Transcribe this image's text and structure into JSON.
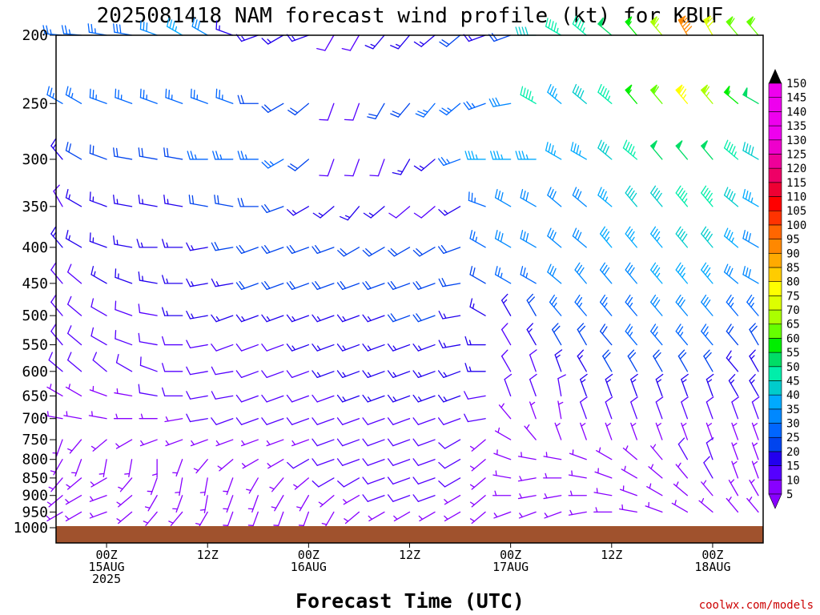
{
  "title": "2025081418 NAM forecast wind profile (kt) for KBUF",
  "credit": "coolwx.com/models",
  "colors": {
    "ground": "#a0522d",
    "frame": "#000000",
    "cbar_stops": [
      "#8800ff",
      "#5500ff",
      "#2200ee",
      "#0044ee",
      "#0066ff",
      "#0088ff",
      "#00aaff",
      "#00cccc",
      "#00eeaa",
      "#00dd66",
      "#00ee00",
      "#66ff00",
      "#aaff00",
      "#ddff00",
      "#ffff00",
      "#ffcc00",
      "#ffaa00",
      "#ff8800",
      "#ff6600",
      "#ff3300",
      "#ff0000",
      "#ee0033",
      "#ee0066",
      "#ee0099",
      "#ee00cc",
      "#ee00ee"
    ]
  },
  "chart_data": {
    "type": "wind_barb_profile",
    "xlabel": "Forecast Time (UTC)",
    "ylabel": "",
    "unit": "kt",
    "ylim": [
      1000,
      200
    ],
    "y_scale": "log-pressure",
    "y_ticks": [
      200,
      250,
      300,
      350,
      400,
      450,
      500,
      550,
      600,
      650,
      700,
      750,
      800,
      850,
      900,
      950,
      1000
    ],
    "x_ticks": [
      {
        "line1": "00Z",
        "line2": "15AUG",
        "line3": "2025",
        "hour": 6
      },
      {
        "line1": "12Z",
        "line2": "",
        "line3": "",
        "hour": 18
      },
      {
        "line1": "00Z",
        "line2": "16AUG",
        "line3": "",
        "hour": 30
      },
      {
        "line1": "12Z",
        "line2": "",
        "line3": "",
        "hour": 42
      },
      {
        "line1": "00Z",
        "line2": "17AUG",
        "line3": "",
        "hour": 54
      },
      {
        "line1": "12Z",
        "line2": "",
        "line3": "",
        "hour": 66
      },
      {
        "line1": "00Z",
        "line2": "18AUG",
        "line3": "",
        "hour": 78
      }
    ],
    "xlim_hours": [
      0,
      84
    ],
    "colorbar": {
      "min": 5,
      "max": 150,
      "step": 5,
      "labels": [
        150,
        145,
        140,
        135,
        130,
        125,
        120,
        115,
        110,
        105,
        100,
        95,
        90,
        85,
        80,
        75,
        70,
        65,
        60,
        55,
        50,
        45,
        40,
        35,
        30,
        25,
        20,
        15,
        10,
        5
      ]
    },
    "barb_hours": [
      0,
      3,
      6,
      9,
      12,
      15,
      18,
      21,
      24,
      27,
      30,
      33,
      36,
      39,
      42,
      45,
      48,
      51,
      54,
      57,
      60,
      63,
      66,
      69,
      72,
      75,
      78,
      81,
      84
    ],
    "levels": [
      {
        "p": 200,
        "dir": [
          275,
          275,
          280,
          280,
          290,
          300,
          300,
          290,
          250,
          240,
          250,
          210,
          210,
          220,
          220,
          230,
          230,
          250,
          250,
          270,
          300,
          310,
          310,
          320,
          320,
          330,
          330,
          320,
          320
        ],
        "spd": [
          25,
          25,
          25,
          28,
          30,
          35,
          30,
          15,
          15,
          15,
          15,
          10,
          10,
          15,
          15,
          15,
          20,
          15,
          20,
          40,
          45,
          45,
          50,
          55,
          65,
          90,
          70,
          60,
          60
        ]
      },
      {
        "p": 250,
        "dir": [
          300,
          300,
          290,
          290,
          290,
          290,
          290,
          290,
          270,
          240,
          230,
          200,
          200,
          210,
          220,
          220,
          230,
          250,
          260,
          300,
          310,
          310,
          310,
          320,
          320,
          320,
          320,
          310,
          300
        ],
        "spd": [
          25,
          25,
          25,
          25,
          25,
          25,
          25,
          25,
          20,
          20,
          20,
          10,
          10,
          20,
          20,
          25,
          25,
          25,
          30,
          45,
          35,
          40,
          45,
          55,
          60,
          75,
          65,
          55,
          50
        ]
      },
      {
        "p": 300,
        "dir": [
          320,
          300,
          290,
          280,
          280,
          280,
          270,
          270,
          270,
          240,
          230,
          200,
          200,
          200,
          210,
          230,
          250,
          270,
          270,
          270,
          300,
          300,
          310,
          310,
          320,
          320,
          320,
          310,
          300
        ],
        "spd": [
          15,
          20,
          20,
          20,
          20,
          20,
          25,
          25,
          25,
          25,
          20,
          10,
          10,
          10,
          15,
          15,
          25,
          35,
          35,
          35,
          35,
          35,
          40,
          45,
          50,
          50,
          50,
          45,
          40
        ]
      },
      {
        "p": 350,
        "dir": [
          330,
          300,
          290,
          280,
          280,
          280,
          280,
          280,
          270,
          250,
          240,
          230,
          220,
          230,
          230,
          230,
          240,
          290,
          300,
          300,
          310,
          310,
          310,
          320,
          320,
          320,
          320,
          310,
          300
        ],
        "spd": [
          10,
          15,
          15,
          15,
          15,
          15,
          20,
          20,
          20,
          20,
          15,
          15,
          15,
          15,
          10,
          10,
          15,
          25,
          30,
          30,
          30,
          30,
          35,
          40,
          40,
          45,
          45,
          40,
          35
        ]
      },
      {
        "p": 400,
        "dir": [
          320,
          300,
          290,
          280,
          270,
          270,
          260,
          260,
          250,
          250,
          250,
          250,
          240,
          240,
          240,
          240,
          250,
          300,
          300,
          300,
          310,
          310,
          320,
          320,
          320,
          320,
          320,
          310,
          300
        ],
        "spd": [
          15,
          15,
          15,
          15,
          15,
          15,
          15,
          20,
          20,
          20,
          20,
          20,
          20,
          20,
          20,
          20,
          20,
          25,
          30,
          30,
          30,
          30,
          35,
          35,
          35,
          40,
          40,
          35,
          30
        ]
      },
      {
        "p": 450,
        "dir": [
          320,
          310,
          300,
          290,
          280,
          270,
          260,
          260,
          250,
          250,
          250,
          250,
          250,
          250,
          250,
          250,
          260,
          300,
          300,
          300,
          310,
          320,
          320,
          320,
          320,
          320,
          320,
          310,
          300
        ],
        "spd": [
          10,
          10,
          15,
          15,
          15,
          15,
          15,
          15,
          20,
          20,
          20,
          20,
          20,
          20,
          20,
          20,
          20,
          20,
          25,
          25,
          30,
          30,
          30,
          30,
          35,
          35,
          35,
          30,
          30
        ]
      },
      {
        "p": 500,
        "dir": [
          320,
          310,
          300,
          290,
          280,
          270,
          260,
          250,
          250,
          250,
          250,
          250,
          250,
          250,
          250,
          250,
          260,
          300,
          330,
          330,
          320,
          320,
          320,
          320,
          320,
          320,
          320,
          320,
          320
        ],
        "spd": [
          10,
          10,
          10,
          10,
          10,
          15,
          15,
          15,
          15,
          15,
          15,
          15,
          15,
          15,
          20,
          20,
          15,
          15,
          15,
          20,
          25,
          25,
          25,
          25,
          30,
          30,
          30,
          25,
          25
        ]
      },
      {
        "p": 550,
        "dir": [
          320,
          310,
          300,
          290,
          280,
          270,
          260,
          250,
          250,
          250,
          250,
          250,
          250,
          250,
          250,
          250,
          260,
          270,
          330,
          330,
          330,
          330,
          320,
          320,
          320,
          320,
          320,
          320,
          330
        ],
        "spd": [
          10,
          10,
          10,
          10,
          10,
          10,
          10,
          10,
          10,
          10,
          15,
          15,
          15,
          15,
          15,
          15,
          15,
          15,
          10,
          15,
          20,
          20,
          20,
          25,
          25,
          25,
          25,
          20,
          20
        ]
      },
      {
        "p": 600,
        "dir": [
          310,
          310,
          310,
          300,
          290,
          270,
          260,
          260,
          250,
          250,
          250,
          250,
          250,
          250,
          250,
          250,
          250,
          270,
          330,
          340,
          340,
          330,
          330,
          330,
          330,
          330,
          330,
          320,
          330
        ],
        "spd": [
          10,
          10,
          10,
          10,
          10,
          10,
          10,
          10,
          10,
          10,
          10,
          15,
          15,
          15,
          15,
          15,
          15,
          15,
          10,
          10,
          15,
          15,
          20,
          20,
          20,
          20,
          20,
          15,
          15
        ]
      },
      {
        "p": 650,
        "dir": [
          300,
          300,
          290,
          280,
          280,
          270,
          260,
          260,
          250,
          250,
          250,
          250,
          250,
          250,
          250,
          250,
          250,
          260,
          340,
          340,
          350,
          340,
          340,
          340,
          340,
          340,
          340,
          330,
          330
        ],
        "spd": [
          5,
          5,
          5,
          5,
          10,
          10,
          10,
          10,
          10,
          10,
          10,
          10,
          15,
          15,
          15,
          15,
          15,
          10,
          10,
          10,
          10,
          15,
          15,
          15,
          15,
          15,
          15,
          15,
          15
        ]
      },
      {
        "p": 700,
        "dir": [
          280,
          280,
          280,
          270,
          270,
          260,
          260,
          250,
          250,
          250,
          250,
          250,
          250,
          250,
          250,
          250,
          250,
          260,
          320,
          340,
          350,
          340,
          340,
          340,
          340,
          340,
          340,
          340,
          340
        ],
        "spd": [
          5,
          5,
          5,
          5,
          5,
          5,
          10,
          10,
          10,
          10,
          10,
          10,
          10,
          10,
          10,
          10,
          10,
          10,
          5,
          5,
          5,
          10,
          10,
          10,
          10,
          10,
          10,
          10,
          10
        ]
      },
      {
        "p": 750,
        "dir": [
          200,
          220,
          230,
          240,
          250,
          250,
          250,
          250,
          250,
          250,
          250,
          250,
          250,
          250,
          250,
          250,
          240,
          230,
          300,
          320,
          340,
          340,
          340,
          340,
          340,
          340,
          340,
          340,
          340
        ],
        "spd": [
          5,
          5,
          5,
          5,
          5,
          5,
          5,
          5,
          5,
          5,
          5,
          10,
          10,
          10,
          10,
          10,
          10,
          5,
          5,
          5,
          5,
          5,
          5,
          5,
          5,
          5,
          5,
          5,
          5
        ]
      },
      {
        "p": 800,
        "dir": [
          210,
          200,
          190,
          190,
          180,
          200,
          220,
          230,
          240,
          240,
          240,
          250,
          250,
          250,
          250,
          250,
          240,
          230,
          290,
          280,
          280,
          290,
          300,
          310,
          320,
          330,
          340,
          340,
          340
        ],
        "spd": [
          5,
          5,
          5,
          5,
          5,
          5,
          5,
          5,
          5,
          5,
          10,
          10,
          10,
          10,
          10,
          10,
          10,
          5,
          5,
          5,
          5,
          5,
          5,
          5,
          5,
          10,
          10,
          5,
          5
        ]
      },
      {
        "p": 850,
        "dir": [
          220,
          230,
          240,
          220,
          200,
          190,
          190,
          200,
          210,
          220,
          230,
          240,
          240,
          250,
          250,
          250,
          240,
          230,
          280,
          260,
          270,
          280,
          290,
          300,
          310,
          320,
          330,
          340,
          340
        ],
        "spd": [
          5,
          5,
          5,
          5,
          5,
          5,
          5,
          5,
          5,
          5,
          5,
          10,
          10,
          10,
          10,
          10,
          10,
          5,
          5,
          5,
          5,
          5,
          5,
          5,
          5,
          5,
          10,
          5,
          5
        ]
      },
      {
        "p": 900,
        "dir": [
          230,
          240,
          250,
          230,
          210,
          200,
          190,
          200,
          200,
          210,
          210,
          230,
          240,
          250,
          250,
          250,
          240,
          230,
          270,
          260,
          260,
          270,
          280,
          290,
          300,
          310,
          320,
          330,
          330
        ],
        "spd": [
          5,
          5,
          5,
          5,
          5,
          5,
          5,
          5,
          5,
          5,
          5,
          5,
          5,
          10,
          10,
          10,
          5,
          5,
          5,
          5,
          5,
          5,
          5,
          5,
          5,
          5,
          5,
          5,
          5
        ]
      },
      {
        "p": 950,
        "dir": [
          240,
          240,
          250,
          230,
          220,
          220,
          210,
          200,
          200,
          200,
          200,
          210,
          230,
          240,
          240,
          240,
          240,
          230,
          250,
          250,
          250,
          260,
          270,
          280,
          290,
          300,
          310,
          320,
          320
        ],
        "spd": [
          5,
          5,
          5,
          5,
          5,
          5,
          5,
          5,
          5,
          5,
          5,
          5,
          5,
          5,
          5,
          5,
          5,
          5,
          5,
          5,
          5,
          5,
          5,
          5,
          5,
          5,
          5,
          5,
          5
        ]
      }
    ]
  }
}
